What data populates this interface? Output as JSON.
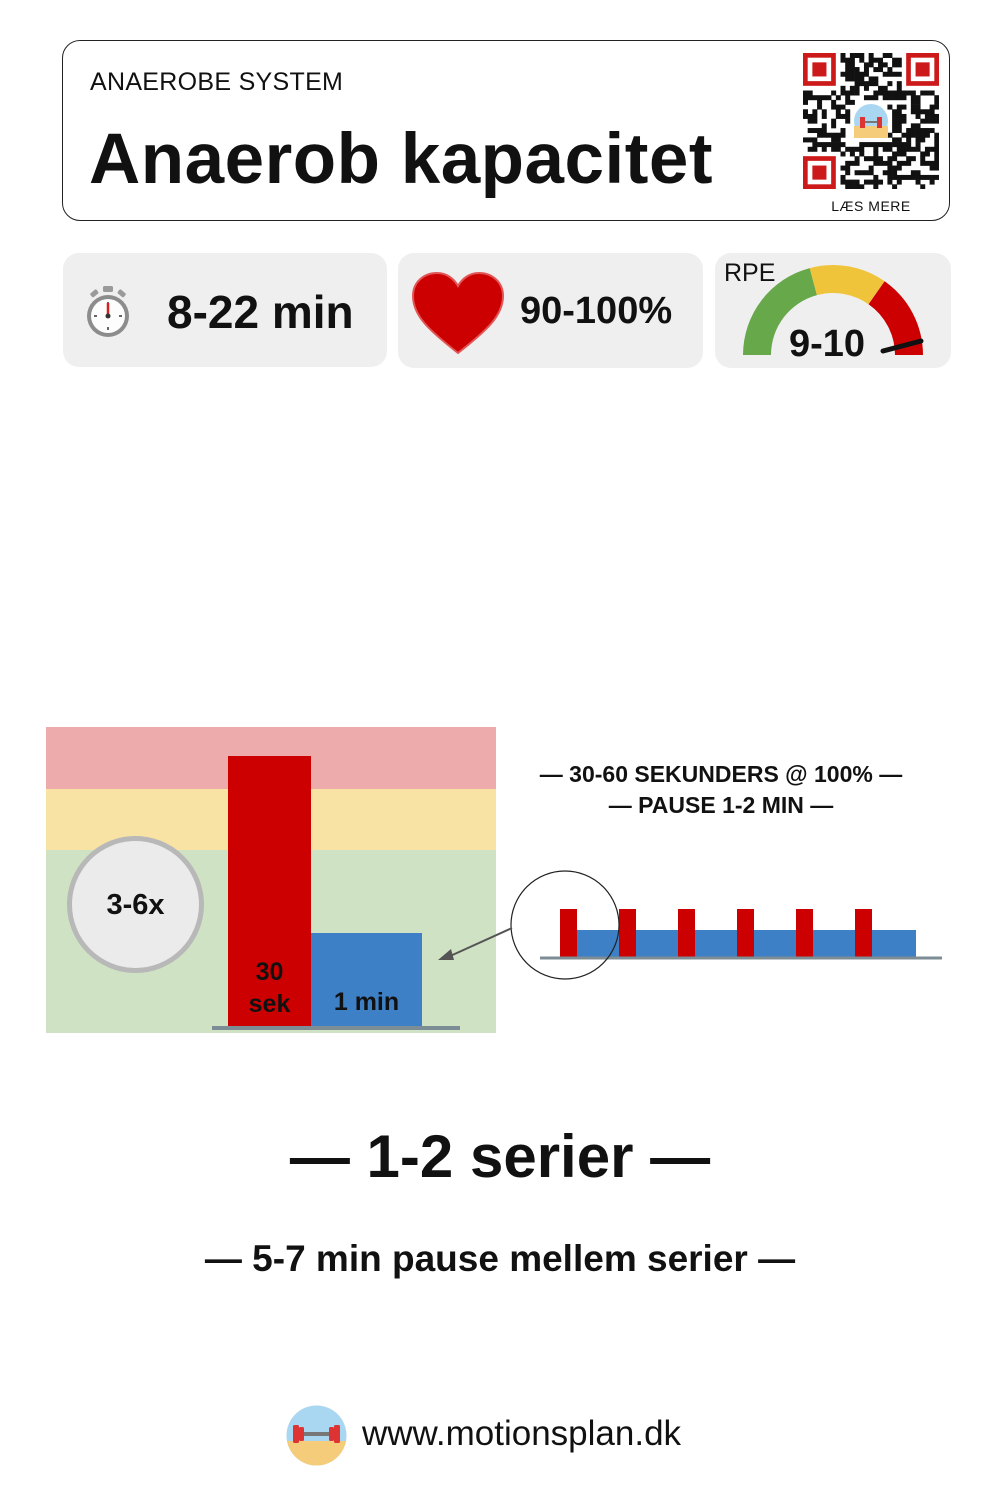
{
  "header": {
    "category": "ANAEROBE SYSTEM",
    "title": "Anaerob kapacitet",
    "qr_caption": "LÆS MERE"
  },
  "stats": {
    "duration": {
      "icon": "stopwatch-icon",
      "value": "8-22 min"
    },
    "heart_rate": {
      "icon": "heart-icon",
      "value": "90-100%"
    },
    "rpe": {
      "label": "RPE",
      "value": "9-10",
      "gauge_colors": [
        "#66a84a",
        "#f0c43a",
        "#cc0000"
      ]
    }
  },
  "diagram": {
    "repeat": "3-6x",
    "work_label_line1": "30",
    "work_label_line2": "sek",
    "rest_label": "1 min",
    "interval_line1": "— 30-60 SEKUNDERS @ 100% —",
    "interval_line2": "— PAUSE 1-2 MIN —",
    "zone_colors": [
      "#eeabab",
      "#f8e3a4",
      "#cfe3c4"
    ],
    "work_color": "#cc0000",
    "rest_color": "#3d80c6"
  },
  "series": "— 1-2 serier —",
  "series_pause": "— 5-7 min pause mellem serier —",
  "footer": {
    "website": "www.motionsplan.dk",
    "logo": "motionsplan-logo"
  }
}
